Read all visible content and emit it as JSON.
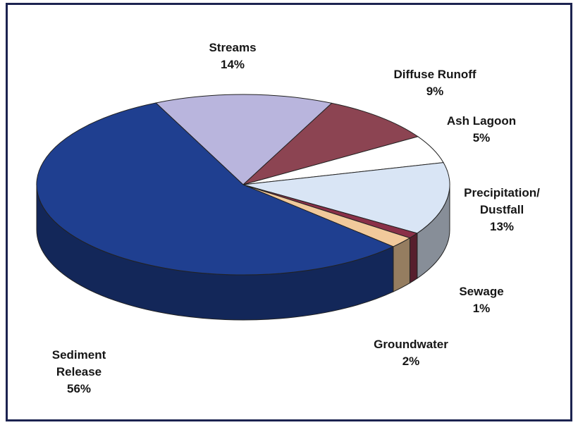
{
  "chart_data": {
    "type": "pie",
    "categories": [
      "Streams",
      "Diffuse Runoff",
      "Ash Lagoon",
      "Precipitation/ Dustfall",
      "Sewage",
      "Groundwater",
      "Sediment Release"
    ],
    "values": [
      14,
      9,
      5,
      13,
      1,
      2,
      56
    ],
    "value_labels": [
      "14%",
      "9%",
      "5%",
      "13%",
      "1%",
      "2%",
      "56%"
    ],
    "colors": [
      "#b9b5dd",
      "#8c4452",
      "#ffffff",
      "#d9e5f5",
      "#8a3048",
      "#f1c99b",
      "#1f3f90"
    ]
  }
}
